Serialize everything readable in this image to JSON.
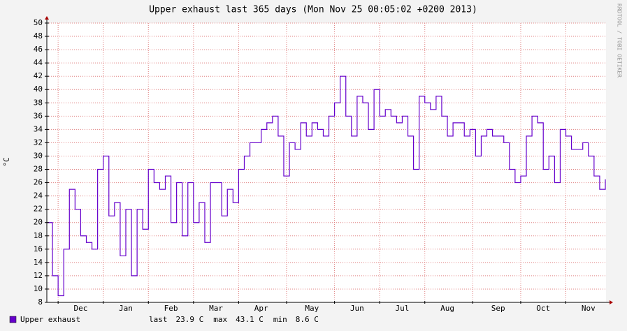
{
  "chart_data": {
    "type": "line",
    "title": "Upper exhaust last 365 days (Mon Nov 25 00:05:02 +0200 2013)",
    "y_label": "°C",
    "watermark": "RRDTOOL / TOBI OETIKER",
    "categories": [
      null,
      null,
      null,
      null,
      null,
      null,
      "Dec",
      null,
      null,
      null,
      null,
      null,
      null,
      null,
      "Jan",
      null,
      null,
      null,
      null,
      null,
      null,
      null,
      "Feb",
      null,
      null,
      null,
      null,
      null,
      null,
      null,
      "Mar",
      null,
      null,
      null,
      null,
      null,
      null,
      null,
      "Apr",
      null,
      null,
      null,
      null,
      null,
      null,
      null,
      null,
      "May",
      null,
      null,
      null,
      null,
      null,
      null,
      null,
      "Jun",
      null,
      null,
      null,
      null,
      null,
      null,
      null,
      "Jul",
      null,
      null,
      null,
      null,
      null,
      null,
      null,
      "Aug",
      null,
      null,
      null,
      null,
      null,
      null,
      null,
      null,
      "Sep",
      null,
      null,
      null,
      null,
      null,
      null,
      null,
      "Oct",
      null,
      null,
      null,
      null,
      null,
      null,
      null,
      "Nov",
      null,
      null,
      null
    ],
    "series": [
      {
        "name": "Upper exhaust",
        "color": "#6600cc",
        "values": [
          20,
          12,
          9,
          16,
          25,
          22,
          18,
          17,
          16,
          28,
          30,
          21,
          23,
          15,
          22,
          12,
          22,
          19,
          28,
          26,
          25,
          27,
          20,
          26,
          18,
          26,
          20,
          23,
          17,
          26,
          26,
          21,
          25,
          23,
          28,
          30,
          32,
          32,
          34,
          35,
          36,
          33,
          27,
          32,
          31,
          35,
          33,
          35,
          34,
          33,
          36,
          38,
          42,
          36,
          33,
          39,
          38,
          34,
          40,
          36,
          37,
          36,
          35,
          36,
          33,
          28,
          39,
          38,
          37,
          39,
          36,
          33,
          35,
          35,
          33,
          34,
          30,
          33,
          34,
          33,
          33,
          32,
          28,
          26,
          27,
          33,
          36,
          35,
          28,
          30,
          26,
          34,
          33,
          31,
          31,
          32,
          30,
          27,
          25,
          26.5
        ]
      }
    ],
    "stats": [
      {
        "label": "last",
        "value": "23.9 C"
      },
      {
        "label": "max",
        "value": "43.1 C"
      },
      {
        "label": "min",
        "value": "8.6 C"
      }
    ],
    "ylim": [
      8,
      50
    ],
    "yticks": [
      8,
      10,
      12,
      14,
      16,
      18,
      20,
      22,
      24,
      26,
      28,
      30,
      32,
      34,
      36,
      38,
      40,
      42,
      44,
      46,
      48,
      50
    ],
    "grid": true
  }
}
